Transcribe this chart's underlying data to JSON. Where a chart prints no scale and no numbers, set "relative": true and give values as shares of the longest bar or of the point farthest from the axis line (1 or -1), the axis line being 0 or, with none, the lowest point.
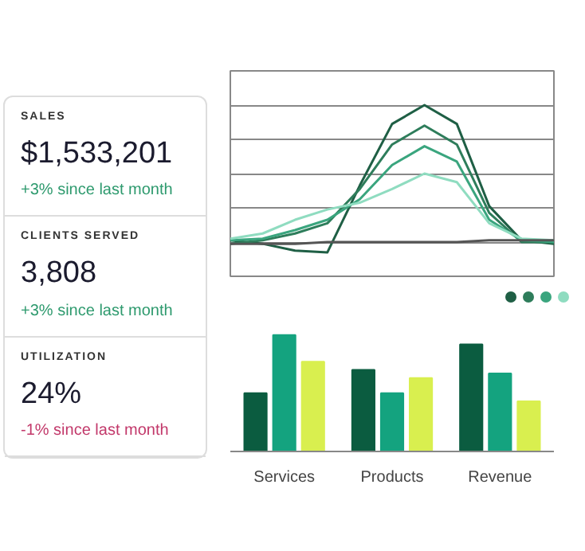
{
  "chart_data": [
    {
      "type": "other",
      "annotations": [
        "SALES",
        "$1,533,201",
        "+3% since last month",
        "CLIENTS SERVED",
        "3,808",
        "+3% since last month",
        "UTILIZATION",
        "24%",
        "-1% since last month"
      ]
    },
    {
      "type": "line",
      "relative": true,
      "grid": "y",
      "categories": [
        null,
        null,
        null,
        null,
        null,
        null,
        null,
        null,
        null,
        null,
        null
      ],
      "series": [
        {
          "color": "#1f5f45",
          "values": [
            0.21,
            0.19,
            0.15,
            0.14,
            0.53,
            0.89,
            1.0,
            0.89,
            0.41,
            0.21,
            0.19
          ]
        },
        {
          "color": "#2e7d5b",
          "values": [
            0.19,
            0.21,
            0.25,
            0.31,
            0.51,
            0.77,
            0.88,
            0.77,
            0.37,
            0.2,
            0.2
          ]
        },
        {
          "color": "#3aa57e",
          "values": [
            0.21,
            0.22,
            0.27,
            0.33,
            0.45,
            0.65,
            0.76,
            0.67,
            0.33,
            0.21,
            0.2
          ]
        },
        {
          "color": "#8fdcc0",
          "values": [
            0.22,
            0.25,
            0.33,
            0.39,
            0.43,
            0.51,
            0.6,
            0.55,
            0.31,
            0.22,
            0.21
          ]
        },
        {
          "color": "#555555",
          "values": [
            0.19,
            0.19,
            0.19,
            0.2,
            0.2,
            0.2,
            0.2,
            0.2,
            0.21,
            0.21,
            0.21
          ]
        }
      ]
    },
    {
      "type": "bar",
      "relative": true,
      "categories": [
        "Services",
        "Products",
        "Revenue"
      ],
      "series": [
        {
          "color": "#0b5c40",
          "values": [
            0.5,
            0.7,
            0.92
          ]
        },
        {
          "color": "#14a37f",
          "values": [
            1.0,
            0.5,
            0.67
          ]
        },
        {
          "color": "#d9ef4f",
          "values": [
            0.77,
            0.63,
            0.43
          ]
        }
      ]
    }
  ]
}
